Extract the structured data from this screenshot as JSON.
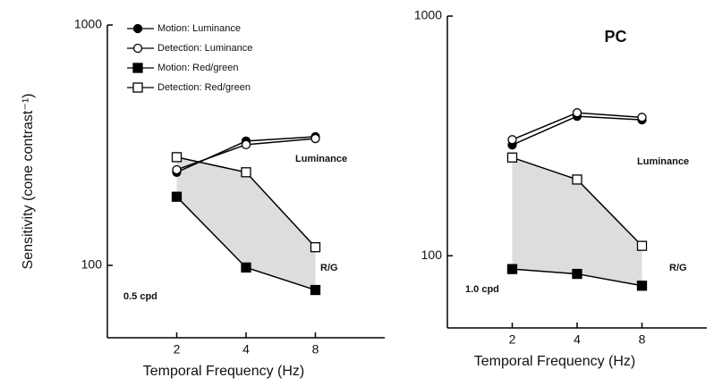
{
  "chart_data": [
    {
      "type": "line",
      "xlabel": "Temporal Frequency (Hz)",
      "ylabel": "Sensitivity (cone contrast⁻¹)",
      "x": [
        2,
        4,
        8
      ],
      "xlim": [
        1,
        16
      ],
      "xticks": [
        2,
        4,
        8
      ],
      "log_x": true,
      "ylim": [
        50,
        1000
      ],
      "yticks": [
        100,
        1000
      ],
      "log_y": true,
      "legend": "upper left",
      "annotations": [
        "Luminance",
        "R/G",
        "0.5 cpd"
      ],
      "series": [
        {
          "name": "Motion: Luminance",
          "color": "#000000",
          "marker": "filled-circle",
          "values": [
            244,
            329,
            343
          ]
        },
        {
          "name": "Detection: Luminance",
          "color": "#000000",
          "marker": "open-circle",
          "values": [
            250,
            318,
            337
          ]
        },
        {
          "name": "Motion: Red/green",
          "color": "#000000",
          "marker": "filled-square",
          "values": [
            193,
            98,
            79
          ]
        },
        {
          "name": "Detection: Red/green",
          "color": "#000000",
          "marker": "open-square",
          "values": [
            282,
            244,
            119
          ]
        }
      ]
    },
    {
      "type": "line",
      "title": "PC",
      "xlabel": "Temporal Frequency (Hz)",
      "x": [
        2,
        4,
        8
      ],
      "xlim": [
        1,
        16
      ],
      "xticks": [
        2,
        4,
        8
      ],
      "log_x": true,
      "ylim": [
        50,
        1000
      ],
      "yticks": [
        100,
        1000
      ],
      "log_y": true,
      "annotations": [
        "Luminance",
        "R/G",
        "1.0 cpd"
      ],
      "series": [
        {
          "color": "#000000",
          "marker": "filled-circle",
          "values": [
            290,
            382,
            369
          ]
        },
        {
          "color": "#000000",
          "marker": "open-circle",
          "values": [
            305,
            395,
            378
          ]
        },
        {
          "color": "#000000",
          "marker": "filled-square",
          "values": [
            88,
            84,
            75
          ]
        },
        {
          "color": "#000000",
          "marker": "open-square",
          "values": [
            257,
            208,
            110
          ]
        }
      ]
    }
  ]
}
